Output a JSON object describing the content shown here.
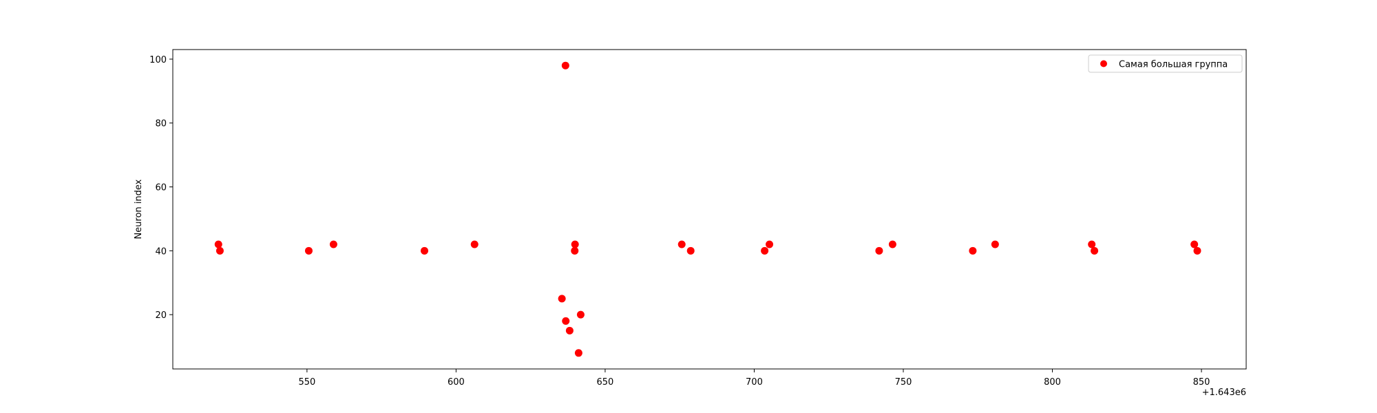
{
  "chart_data": {
    "type": "scatter",
    "ylabel": "Neuron index",
    "x_offset_label": "+1.643e6",
    "x_ticks": [
      {
        "value": 1643550,
        "label": "550"
      },
      {
        "value": 1643600,
        "label": "600"
      },
      {
        "value": 1643650,
        "label": "650"
      },
      {
        "value": 1643700,
        "label": "700"
      },
      {
        "value": 1643750,
        "label": "750"
      },
      {
        "value": 1643800,
        "label": "800"
      },
      {
        "value": 1643850,
        "label": "850"
      }
    ],
    "y_ticks": [
      {
        "value": 20,
        "label": "20"
      },
      {
        "value": 40,
        "label": "40"
      },
      {
        "value": 60,
        "label": "60"
      },
      {
        "value": 80,
        "label": "80"
      },
      {
        "value": 100,
        "label": "100"
      }
    ],
    "xlim": [
      1643505,
      1643865
    ],
    "ylim": [
      3,
      103
    ],
    "grid": false,
    "legend_position": "top-right",
    "series": [
      {
        "name": "Самая большая группа",
        "color": "#ff0000",
        "points": [
          {
            "x": 1643520.3,
            "y": 42
          },
          {
            "x": 1643520.8,
            "y": 40
          },
          {
            "x": 1643550.6,
            "y": 40
          },
          {
            "x": 1643558.9,
            "y": 42
          },
          {
            "x": 1643589.4,
            "y": 40
          },
          {
            "x": 1643606.2,
            "y": 42
          },
          {
            "x": 1643635.5,
            "y": 25
          },
          {
            "x": 1643636.7,
            "y": 98
          },
          {
            "x": 1643636.8,
            "y": 18
          },
          {
            "x": 1643638.1,
            "y": 15
          },
          {
            "x": 1643639.8,
            "y": 40
          },
          {
            "x": 1643639.9,
            "y": 42
          },
          {
            "x": 1643641.1,
            "y": 8
          },
          {
            "x": 1643641.8,
            "y": 20
          },
          {
            "x": 1643675.7,
            "y": 42
          },
          {
            "x": 1643678.7,
            "y": 40
          },
          {
            "x": 1643703.5,
            "y": 40
          },
          {
            "x": 1643705.1,
            "y": 42
          },
          {
            "x": 1643741.9,
            "y": 40
          },
          {
            "x": 1643746.4,
            "y": 42
          },
          {
            "x": 1643773.3,
            "y": 40
          },
          {
            "x": 1643780.8,
            "y": 42
          },
          {
            "x": 1643813.2,
            "y": 42
          },
          {
            "x": 1643814.1,
            "y": 40
          },
          {
            "x": 1643847.6,
            "y": 42
          },
          {
            "x": 1643848.6,
            "y": 40
          }
        ]
      }
    ]
  }
}
